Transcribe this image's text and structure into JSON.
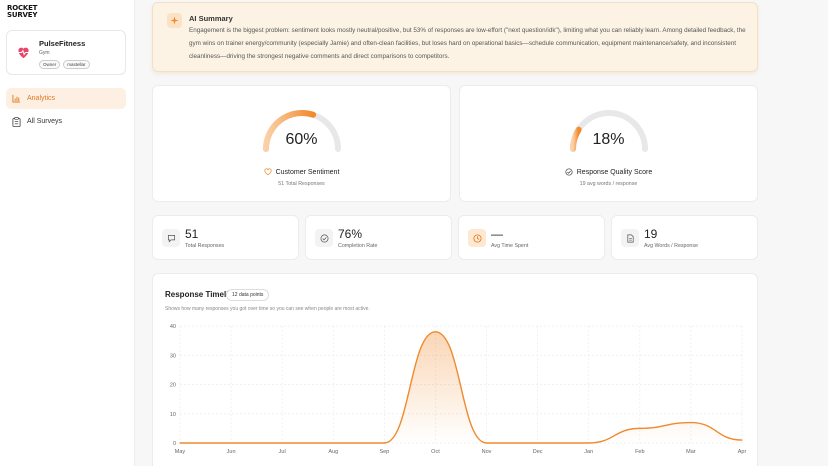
{
  "app": {
    "logo_line1": "ROCKET",
    "logo_line2": "SURVEY"
  },
  "org": {
    "name": "PulseFitness",
    "type": "Gym",
    "badges": [
      "Owner",
      "mastellar"
    ]
  },
  "nav": [
    {
      "label": "Analytics",
      "icon": "bar-chart-icon",
      "active": true
    },
    {
      "label": "All Surveys",
      "icon": "clipboard-icon",
      "active": false
    }
  ],
  "ai_summary": {
    "title": "AI Summary",
    "text": "Engagement is the biggest problem: sentiment looks mostly neutral/positive, but 53% of responses are low-effort (\"next question/idk\"), limiting what you can reliably learn. Among detailed feedback, the gym wins on trainer energy/community (especially Jamie) and often-clean facilities, but loses hard on operational basics—schedule communication, equipment maintenance/safety, and inconsistent cleanliness—driving the strongest negative comments and direct comparisons to competitors."
  },
  "gauges": [
    {
      "value_text": "60%",
      "value": 0.6,
      "label": "Customer Sentiment",
      "icon": "heart-icon",
      "sub": "51 Total Responses"
    },
    {
      "value_text": "18%",
      "value": 0.18,
      "label": "Response Quality Score",
      "icon": "check-circle-icon",
      "sub": "19 avg words / response"
    }
  ],
  "stats": [
    {
      "value": "51",
      "label": "Total Responses",
      "icon": "message-icon"
    },
    {
      "value": "76%",
      "label": "Completion Rate",
      "icon": "check-circle-icon"
    },
    {
      "value": "—",
      "label": "Avg Time Spent",
      "icon": "clock-icon"
    },
    {
      "value": "19",
      "label": "Avg Words / Response",
      "icon": "document-icon"
    }
  ],
  "timeline": {
    "title": "Response Timeline",
    "badge": "12 data points",
    "subtitle": "Shows how many responses you got over time so you can see when people are most active."
  },
  "colors": {
    "accent": "#f08a2c",
    "gauge_track": "#e8e8e8"
  },
  "chart_data": {
    "type": "area",
    "categories": [
      "May",
      "Jun",
      "Jul",
      "Aug",
      "Sep",
      "Oct",
      "Nov",
      "Dec",
      "Jan",
      "Feb",
      "Mar",
      "Apr"
    ],
    "values": [
      0,
      0,
      0,
      0,
      0,
      38,
      0,
      0,
      0,
      5,
      7,
      1
    ],
    "ylim": [
      0,
      40
    ],
    "yticks": [
      0,
      10,
      20,
      30,
      40
    ],
    "grid": true
  }
}
